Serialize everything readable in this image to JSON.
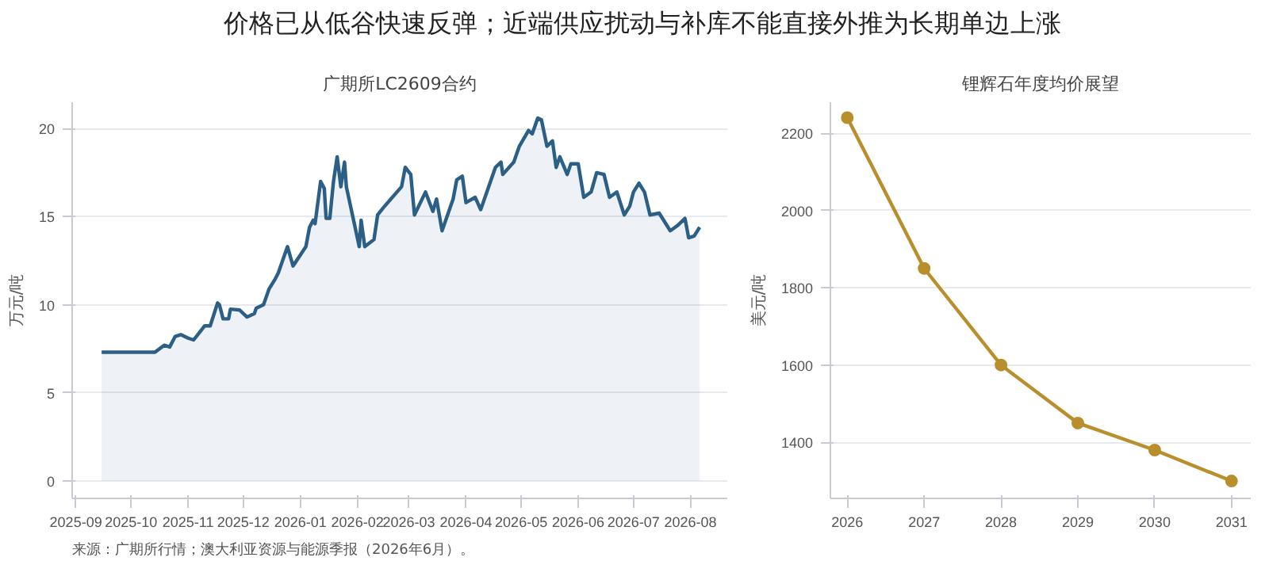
{
  "chart_data": [
    {
      "type": "area",
      "title": "价格已从低谷快速反弹；近端供应扰动与补库不能直接外推为长期单边上涨",
      "subtitle": "广期所LC2609合约",
      "ylabel": "万元/吨",
      "annotations": [
        "来源：广期所行情；澳大利亚资源与能源季报（2026年6月）。"
      ],
      "x": [
        "2025-09-15",
        "2025-10-14",
        "2025-10-19",
        "2025-10-22",
        "2025-10-25",
        "2025-10-28",
        "2025-11-01",
        "2025-11-04",
        "2025-11-10",
        "2025-11-13",
        "2025-11-17",
        "2025-11-18",
        "2025-11-20",
        "2025-11-23",
        "2025-11-24",
        "2025-11-29",
        "2025-12-03",
        "2025-12-07",
        "2025-12-08",
        "2025-12-12",
        "2025-12-15",
        "2025-12-18",
        "2025-12-20",
        "2025-12-23",
        "2025-12-25",
        "2025-12-28",
        "2026-01-04",
        "2026-01-06",
        "2026-01-08",
        "2026-01-09",
        "2026-01-12",
        "2026-01-14",
        "2026-01-15",
        "2026-01-17",
        "2026-01-19",
        "2026-01-21",
        "2026-01-23",
        "2026-01-25",
        "2026-01-26",
        "2026-02-02",
        "2026-02-03",
        "2026-02-05",
        "2026-02-10",
        "2026-02-12",
        "2026-02-15",
        "2026-02-25",
        "2026-02-27",
        "2026-03-02",
        "2026-03-04",
        "2026-03-10",
        "2026-03-14",
        "2026-03-16",
        "2026-03-19",
        "2026-03-25",
        "2026-03-27",
        "2026-03-30",
        "2026-04-01",
        "2026-04-06",
        "2026-04-09",
        "2026-04-14",
        "2026-04-17",
        "2026-04-20",
        "2026-04-21",
        "2026-04-27",
        "2026-04-30",
        "2026-05-05",
        "2026-05-07",
        "2026-05-10",
        "2026-05-12",
        "2026-05-15",
        "2026-05-18",
        "2026-05-20",
        "2026-05-22",
        "2026-05-26",
        "2026-05-28",
        "2026-06-01",
        "2026-06-04",
        "2026-06-08",
        "2026-06-11",
        "2026-06-15",
        "2026-06-18",
        "2026-06-22",
        "2026-06-26",
        "2026-06-29",
        "2026-07-01",
        "2026-07-04",
        "2026-07-07",
        "2026-07-10",
        "2026-07-15",
        "2026-07-21",
        "2026-07-25",
        "2026-07-29",
        "2026-07-31",
        "2026-08-03",
        "2026-08-06"
      ],
      "series": [
        {
          "color": "#2b5f86",
          "values": [
            7.3,
            7.3,
            7.7,
            7.6,
            8.2,
            8.3,
            8.1,
            8.0,
            8.8,
            8.8,
            10.1,
            10.0,
            9.2,
            9.2,
            9.75,
            9.7,
            9.3,
            9.5,
            9.8,
            10.0,
            10.9,
            11.4,
            11.8,
            12.7,
            13.3,
            12.2,
            13.3,
            14.4,
            14.8,
            14.6,
            17.0,
            16.6,
            14.9,
            14.9,
            17.0,
            18.4,
            16.7,
            18.1,
            16.7,
            13.3,
            14.8,
            13.3,
            13.7,
            15.1,
            15.5,
            16.7,
            17.8,
            17.4,
            15.1,
            16.4,
            15.3,
            16.0,
            14.2,
            16.0,
            17.1,
            17.3,
            15.8,
            16.1,
            15.4,
            16.9,
            17.8,
            18.1,
            17.4,
            18.1,
            19.0,
            19.9,
            19.7,
            20.6,
            20.5,
            19.0,
            19.3,
            17.8,
            18.4,
            17.4,
            18.0,
            18.0,
            16.1,
            16.4,
            17.5,
            17.4,
            16.1,
            16.4,
            15.1,
            15.6,
            16.4,
            16.9,
            16.4,
            15.1,
            15.2,
            14.2,
            14.5,
            14.9,
            13.8,
            13.9,
            14.4
          ]
        }
      ],
      "xlim": [
        "2025-08-30",
        "2026-08-21"
      ],
      "xticks": [
        {
          "value": "2025-09-01",
          "label": "2025-09"
        },
        {
          "value": "2025-10-01",
          "label": "2025-10"
        },
        {
          "value": "2025-11-01",
          "label": "2025-11"
        },
        {
          "value": "2025-12-01",
          "label": "2025-12"
        },
        {
          "value": "2026-01-01",
          "label": "2026-01"
        },
        {
          "value": "2026-02-01",
          "label": "2026-02"
        },
        {
          "value": "2026-03-01",
          "label": "2026-03"
        },
        {
          "value": "2026-04-01",
          "label": "2026-04"
        },
        {
          "value": "2026-05-01",
          "label": "2026-05"
        },
        {
          "value": "2026-06-01",
          "label": "2026-06"
        },
        {
          "value": "2026-07-01",
          "label": "2026-07"
        },
        {
          "value": "2026-08-01",
          "label": "2026-08"
        }
      ],
      "ylim": [
        -1,
        21.5
      ],
      "yticks": [
        0,
        5,
        10,
        15,
        20
      ],
      "grid": "y"
    },
    {
      "type": "line",
      "subtitle": "锂辉石年度均价展望",
      "ylabel": "美元/吨",
      "x": [
        2026,
        2027,
        2028,
        2029,
        2030,
        2031
      ],
      "series": [
        {
          "color": "#b88f2c",
          "values": [
            2240,
            1850,
            1600,
            1450,
            1380,
            1300
          ]
        }
      ],
      "xlim": [
        2025.78,
        2031.25
      ],
      "xticks": [
        2026,
        2027,
        2028,
        2029,
        2030,
        2031
      ],
      "ylim": [
        1255,
        2280
      ],
      "yticks": [
        1400,
        1600,
        1800,
        2000,
        2200
      ],
      "grid": "y",
      "marker": "circle",
      "line_style": "solid"
    }
  ]
}
